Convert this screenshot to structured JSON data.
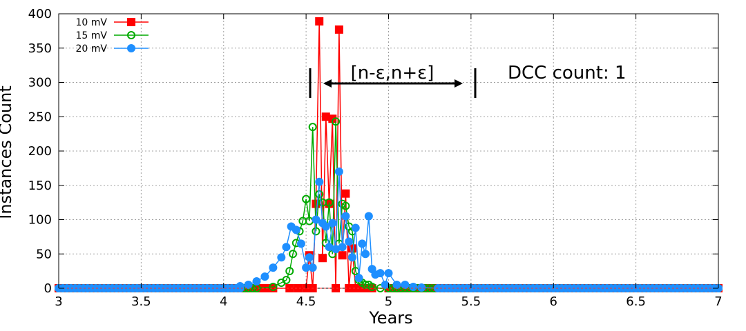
{
  "chart_data": {
    "type": "line",
    "title": "",
    "xlabel": "Years",
    "ylabel": "Instances Count",
    "xlim": [
      3,
      7
    ],
    "ylim": [
      0,
      400
    ],
    "grid": true,
    "legend_position": "top-left",
    "x_ticks": [
      3,
      3.5,
      4,
      4.5,
      5,
      5.5,
      6,
      6.5,
      7
    ],
    "x_tick_labels": [
      "3",
      "3.5",
      "4",
      "4.5",
      "5",
      "5.5",
      "6",
      "6.5",
      "7"
    ],
    "y_ticks": [
      0,
      50,
      100,
      150,
      200,
      250,
      300,
      350,
      400
    ],
    "y_tick_labels": [
      "0",
      "50",
      "100",
      "150",
      "200",
      "250",
      "300",
      "350",
      "400"
    ],
    "series": [
      {
        "name": "10 mV",
        "color": "#ff0000",
        "marker": "filled-square",
        "x": [
          3.0,
          3.5,
          4.0,
          4.3,
          4.4,
          4.45,
          4.5,
          4.52,
          4.54,
          4.56,
          4.58,
          4.6,
          4.62,
          4.64,
          4.66,
          4.68,
          4.7,
          4.72,
          4.74,
          4.76,
          4.78,
          4.8,
          4.82,
          4.84,
          4.86,
          4.9,
          5.0,
          5.5,
          6.0,
          6.5,
          7.0
        ],
        "y": [
          0,
          0,
          0,
          0,
          0,
          0,
          0,
          48,
          0,
          123,
          389,
          44,
          250,
          123,
          247,
          0,
          377,
          48,
          138,
          0,
          58,
          0,
          0,
          0,
          0,
          0,
          0,
          0,
          0,
          0,
          0
        ]
      },
      {
        "name": "15 mV",
        "color": "#00aa00",
        "marker": "open-circle",
        "x": [
          3.0,
          3.5,
          4.0,
          4.2,
          4.3,
          4.35,
          4.38,
          4.4,
          4.42,
          4.44,
          4.46,
          4.48,
          4.5,
          4.52,
          4.54,
          4.56,
          4.58,
          4.6,
          4.62,
          4.64,
          4.66,
          4.68,
          4.7,
          4.72,
          4.74,
          4.76,
          4.78,
          4.8,
          4.82,
          4.84,
          4.86,
          4.88,
          4.9,
          4.95,
          5.0,
          5.5,
          6.0,
          6.5,
          7.0
        ],
        "y": [
          0,
          0,
          0,
          0,
          2,
          8,
          12,
          25,
          50,
          66,
          83,
          98,
          130,
          98,
          235,
          83,
          137,
          125,
          66,
          125,
          50,
          243,
          65,
          123,
          120,
          90,
          83,
          25,
          12,
          8,
          5,
          5,
          2,
          0,
          0,
          0,
          0,
          0,
          0
        ]
      },
      {
        "name": "20 mV",
        "color": "#1e8fff",
        "marker": "filled-circle",
        "x": [
          3.0,
          3.5,
          4.0,
          4.1,
          4.15,
          4.2,
          4.25,
          4.3,
          4.35,
          4.38,
          4.41,
          4.44,
          4.47,
          4.5,
          4.52,
          4.54,
          4.56,
          4.58,
          4.6,
          4.62,
          4.64,
          4.66,
          4.68,
          4.7,
          4.72,
          4.74,
          4.76,
          4.78,
          4.8,
          4.82,
          4.84,
          4.86,
          4.88,
          4.9,
          4.92,
          4.95,
          4.98,
          5.0,
          5.05,
          5.1,
          5.15,
          5.2,
          5.3,
          5.5,
          6.0,
          6.5,
          7.0
        ],
        "y": [
          0,
          0,
          0,
          3,
          5,
          10,
          17,
          30,
          45,
          60,
          90,
          85,
          65,
          30,
          45,
          30,
          100,
          155,
          95,
          90,
          60,
          95,
          57,
          170,
          60,
          105,
          68,
          45,
          88,
          15,
          65,
          50,
          105,
          28,
          20,
          22,
          5,
          22,
          5,
          5,
          2,
          1,
          0,
          0,
          0,
          0,
          0
        ]
      }
    ],
    "annotations": {
      "interval_label": "[n-ε,n+ε]",
      "dcc_label": "DCC count: 1"
    }
  }
}
